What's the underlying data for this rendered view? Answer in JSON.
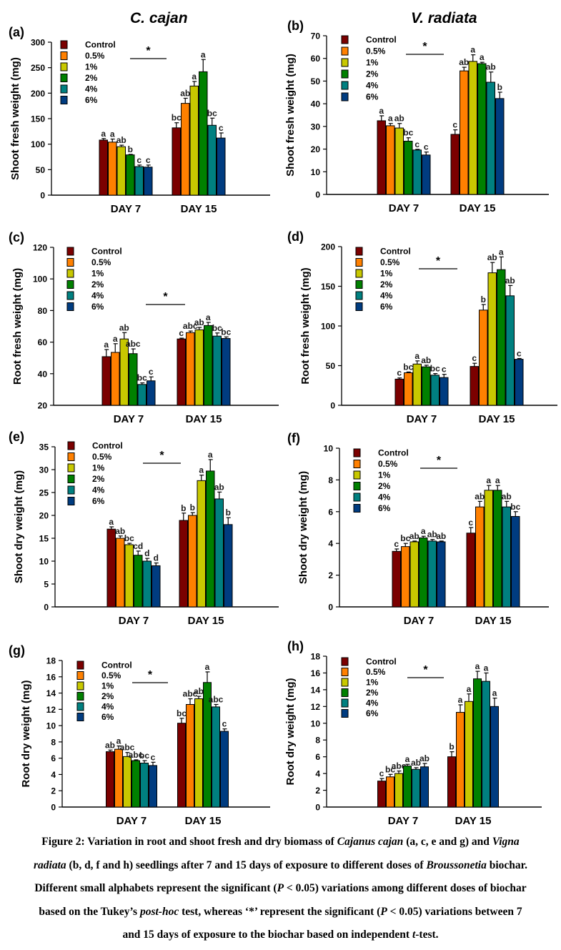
{
  "species_titles": {
    "left": "C. cajan",
    "right": "V. radiata"
  },
  "legend_labels": [
    "Control",
    "0.5%",
    "1%",
    "2%",
    "4%",
    "6%"
  ],
  "series_colors": [
    "#7b0000",
    "#ff8000",
    "#c8c800",
    "#008000",
    "#008080",
    "#003c80"
  ],
  "significance_mark": "*",
  "chart_data": [
    {
      "panel": "(a)",
      "type": "bar",
      "species": "C. cajan",
      "ylabel": "Shoot fresh weight (mg)",
      "ylim": [
        0,
        300
      ],
      "yticks": [
        0,
        50,
        100,
        150,
        200,
        250,
        300
      ],
      "categories": [
        "DAY 7",
        "DAY 15"
      ],
      "series": [
        {
          "name": "Control",
          "values": [
            108,
            132
          ],
          "errors": [
            3,
            10
          ],
          "letters": [
            "a",
            "bc"
          ]
        },
        {
          "name": "0.5%",
          "values": [
            104,
            180
          ],
          "errors": [
            6,
            10
          ],
          "letters": [
            "a",
            "ab"
          ]
        },
        {
          "name": "1%",
          "values": [
            95,
            214
          ],
          "errors": [
            3,
            9
          ],
          "letters": [
            "ab",
            "a"
          ]
        },
        {
          "name": "2%",
          "values": [
            79,
            242
          ],
          "errors": [
            1,
            24
          ],
          "letters": [
            "b",
            "a"
          ]
        },
        {
          "name": "4%",
          "values": [
            56,
            137
          ],
          "errors": [
            3,
            14
          ],
          "letters": [
            "c",
            "bc"
          ]
        },
        {
          "name": "6%",
          "values": [
            55,
            112
          ],
          "errors": [
            4,
            10
          ],
          "letters": [
            "c",
            "c"
          ]
        }
      ]
    },
    {
      "panel": "(b)",
      "type": "bar",
      "species": "V. radiata",
      "ylabel": "Shoot fresh weight (mg)",
      "ylim": [
        0,
        70
      ],
      "yticks": [
        0,
        10,
        20,
        30,
        40,
        50,
        60,
        70
      ],
      "categories": [
        "DAY 7",
        "DAY 15"
      ],
      "series": [
        {
          "name": "Control",
          "values": [
            32.5,
            26.5
          ],
          "errors": [
            2.2,
            2.0
          ],
          "letters": [
            "a",
            "c"
          ]
        },
        {
          "name": "0.5%",
          "values": [
            30.3,
            54.5
          ],
          "errors": [
            1.0,
            1.6
          ],
          "letters": [
            "a",
            "ab"
          ]
        },
        {
          "name": "1%",
          "values": [
            29.3,
            58.7
          ],
          "errors": [
            2.0,
            2.9
          ],
          "letters": [
            "ab",
            "a"
          ]
        },
        {
          "name": "2%",
          "values": [
            23.5,
            57.7
          ],
          "errors": [
            1.5,
            0.6
          ],
          "letters": [
            "bc",
            "a"
          ]
        },
        {
          "name": "4%",
          "values": [
            19.6,
            49.5
          ],
          "errors": [
            0.3,
            4.5
          ],
          "letters": [
            "c",
            "ab"
          ]
        },
        {
          "name": "6%",
          "values": [
            17.4,
            42.3
          ],
          "errors": [
            1.3,
            2.8
          ],
          "letters": [
            "c",
            "b"
          ]
        }
      ]
    },
    {
      "panel": "(c)",
      "type": "bar",
      "species": "C. cajan",
      "ylabel": "Root fresh weight (mg)",
      "ylim": [
        20,
        120
      ],
      "yticks": [
        20,
        40,
        60,
        80,
        100,
        120
      ],
      "categories": [
        "DAY 7",
        "DAY 15"
      ],
      "series": [
        {
          "name": "Control",
          "values": [
            50.8,
            62.0
          ],
          "errors": [
            4.5,
            0.5
          ],
          "letters": [
            "a",
            "c"
          ]
        },
        {
          "name": "0.5%",
          "values": [
            53.5,
            66.0
          ],
          "errors": [
            5.5,
            1.0
          ],
          "letters": [
            "a",
            "abc"
          ]
        },
        {
          "name": "1%",
          "values": [
            62.0,
            67.8
          ],
          "errors": [
            4.0,
            1.5
          ],
          "letters": [
            "ab",
            "ab"
          ]
        },
        {
          "name": "2%",
          "values": [
            52.7,
            70.5
          ],
          "errors": [
            3.0,
            2.0
          ],
          "letters": [
            "abc",
            "a"
          ]
        },
        {
          "name": "4%",
          "values": [
            33.2,
            63.8
          ],
          "errors": [
            1.0,
            2.0
          ],
          "letters": [
            "bc",
            "bc"
          ]
        },
        {
          "name": "6%",
          "values": [
            35.5,
            62.3
          ],
          "errors": [
            2.5,
            1.0
          ],
          "letters": [
            "c",
            "bc"
          ]
        }
      ]
    },
    {
      "panel": "(d)",
      "type": "bar",
      "species": "V. radiata",
      "ylabel": "Root fresh weight (mg)",
      "ylim": [
        0,
        200
      ],
      "yticks": [
        0,
        50,
        100,
        150,
        200
      ],
      "categories": [
        "DAY 7",
        "DAY 15"
      ],
      "series": [
        {
          "name": "Control",
          "values": [
            33,
            49
          ],
          "errors": [
            1.5,
            4
          ],
          "letters": [
            "c",
            "c"
          ]
        },
        {
          "name": "0.5%",
          "values": [
            41,
            120
          ],
          "errors": [
            1,
            7
          ],
          "letters": [
            "bc",
            "b"
          ]
        },
        {
          "name": "1%",
          "values": [
            52,
            167
          ],
          "errors": [
            4,
            13
          ],
          "letters": [
            "a",
            "ab"
          ]
        },
        {
          "name": "2%",
          "values": [
            48.5,
            171
          ],
          "errors": [
            2,
            16
          ],
          "letters": [
            "ab",
            "a"
          ]
        },
        {
          "name": "4%",
          "values": [
            38,
            138
          ],
          "errors": [
            2,
            13
          ],
          "letters": [
            "bc",
            "ab"
          ]
        },
        {
          "name": "6%",
          "values": [
            35,
            58
          ],
          "errors": [
            4,
            1
          ],
          "letters": [
            "c",
            "c"
          ]
        }
      ]
    },
    {
      "panel": "(e)",
      "type": "bar",
      "species": "C. cajan",
      "ylabel": "Shoot dry weight (mg)",
      "ylim": [
        0,
        35
      ],
      "yticks": [
        0,
        5,
        10,
        15,
        20,
        25,
        30,
        35
      ],
      "categories": [
        "DAY 7",
        "DAY 15"
      ],
      "series": [
        {
          "name": "Control",
          "values": [
            17.0,
            18.9
          ],
          "errors": [
            0.5,
            1.6
          ],
          "letters": [
            "a",
            "b"
          ]
        },
        {
          "name": "0.5%",
          "values": [
            15.0,
            20.0
          ],
          "errors": [
            0.5,
            0.6
          ],
          "letters": [
            "ab",
            "b"
          ]
        },
        {
          "name": "1%",
          "values": [
            13.6,
            27.6
          ],
          "errors": [
            0.3,
            1.2
          ],
          "letters": [
            "bc",
            "a"
          ]
        },
        {
          "name": "2%",
          "values": [
            11.3,
            29.7
          ],
          "errors": [
            0.9,
            2.5
          ],
          "letters": [
            "cd",
            "a"
          ]
        },
        {
          "name": "4%",
          "values": [
            10.0,
            23.6
          ],
          "errors": [
            0.6,
            1.5
          ],
          "letters": [
            "d",
            "ab"
          ]
        },
        {
          "name": "6%",
          "values": [
            9.0,
            18.0
          ],
          "errors": [
            0.6,
            1.5
          ],
          "letters": [
            "d",
            "b"
          ]
        }
      ]
    },
    {
      "panel": "(f)",
      "type": "bar",
      "species": "V. radiata",
      "ylabel": "Shoot dry weight (mg)",
      "ylim": [
        0,
        10
      ],
      "yticks": [
        0,
        2,
        4,
        6,
        8,
        10
      ],
      "categories": [
        "DAY 7",
        "DAY 15"
      ],
      "series": [
        {
          "name": "Control",
          "values": [
            3.5,
            4.65
          ],
          "errors": [
            0.15,
            0.35
          ],
          "letters": [
            "c",
            "c"
          ]
        },
        {
          "name": "0.5%",
          "values": [
            3.8,
            6.3
          ],
          "errors": [
            0.2,
            0.35
          ],
          "letters": [
            "bc",
            "ab"
          ]
        },
        {
          "name": "1%",
          "values": [
            4.1,
            7.35
          ],
          "errors": [
            0.05,
            0.3
          ],
          "letters": [
            "ab",
            "a"
          ]
        },
        {
          "name": "2%",
          "values": [
            4.35,
            7.35
          ],
          "errors": [
            0.1,
            0.3
          ],
          "letters": [
            "a",
            "a"
          ]
        },
        {
          "name": "4%",
          "values": [
            4.15,
            6.3
          ],
          "errors": [
            0.1,
            0.35
          ],
          "letters": [
            "ab",
            "ab"
          ]
        },
        {
          "name": "6%",
          "values": [
            4.1,
            5.7
          ],
          "errors": [
            0.05,
            0.3
          ],
          "letters": [
            "ab",
            "bc"
          ]
        }
      ]
    },
    {
      "panel": "(g)",
      "type": "bar",
      "species": "C. cajan",
      "ylabel": "Root dry weight (mg)",
      "ylim": [
        0,
        18
      ],
      "yticks": [
        0,
        2,
        4,
        6,
        8,
        10,
        12,
        14,
        16,
        18
      ],
      "categories": [
        "DAY 7",
        "DAY 15"
      ],
      "series": [
        {
          "name": "Control",
          "values": [
            6.8,
            10.3
          ],
          "errors": [
            0.2,
            0.6
          ],
          "letters": [
            "ab",
            "bc"
          ]
        },
        {
          "name": "0.5%",
          "values": [
            7.1,
            12.6
          ],
          "errors": [
            0.4,
            0.7
          ],
          "letters": [
            "a",
            "abc"
          ]
        },
        {
          "name": "1%",
          "values": [
            6.2,
            13.3
          ],
          "errors": [
            0.5,
            0.3
          ],
          "letters": [
            "abc",
            "ab"
          ]
        },
        {
          "name": "2%",
          "values": [
            5.7,
            15.3
          ],
          "errors": [
            0.1,
            1.3
          ],
          "letters": [
            "abc",
            "a"
          ]
        },
        {
          "name": "4%",
          "values": [
            5.4,
            12.3
          ],
          "errors": [
            0.3,
            0.3
          ],
          "letters": [
            "bc",
            "abc"
          ]
        },
        {
          "name": "6%",
          "values": [
            5.1,
            9.3
          ],
          "errors": [
            0.4,
            0.3
          ],
          "letters": [
            "c",
            "c"
          ]
        }
      ]
    },
    {
      "panel": "(h)",
      "type": "bar",
      "species": "V. radiata",
      "ylabel": "Root dry weight (mg)",
      "ylim": [
        0,
        18
      ],
      "yticks": [
        0,
        2,
        4,
        6,
        8,
        10,
        12,
        14,
        16,
        18
      ],
      "categories": [
        "DAY 7",
        "DAY 15"
      ],
      "series": [
        {
          "name": "Control",
          "values": [
            3.1,
            6.0
          ],
          "errors": [
            0.3,
            0.6
          ],
          "letters": [
            "c",
            "b"
          ]
        },
        {
          "name": "0.5%",
          "values": [
            3.6,
            11.3
          ],
          "errors": [
            0.3,
            0.9
          ],
          "letters": [
            "bc",
            "a"
          ]
        },
        {
          "name": "1%",
          "values": [
            4.0,
            12.6
          ],
          "errors": [
            0.3,
            0.9
          ],
          "letters": [
            "abc",
            "a"
          ]
        },
        {
          "name": "2%",
          "values": [
            4.9,
            15.3
          ],
          "errors": [
            0.2,
            0.9
          ],
          "letters": [
            "a",
            "a"
          ]
        },
        {
          "name": "4%",
          "values": [
            4.5,
            15.0
          ],
          "errors": [
            0.2,
            1.0
          ],
          "letters": [
            "ab",
            "a"
          ]
        },
        {
          "name": "6%",
          "values": [
            4.8,
            12.0
          ],
          "errors": [
            0.4,
            1.0
          ],
          "letters": [
            "ab",
            "a"
          ]
        }
      ]
    }
  ],
  "caption": {
    "lines": [
      [
        {
          "t": "Figure 2: Variation in root and shoot fresh and dry biomass of "
        },
        {
          "t": "Cajanus cajan",
          "i": true
        },
        {
          "t": " (a, c, e and g) and "
        },
        {
          "t": "Vigna",
          "i": true
        }
      ],
      [
        {
          "t": "radiata",
          "i": true
        },
        {
          "t": " (b, d, f and h) seedlings after 7 and 15 days of exposure to different doses of "
        },
        {
          "t": "Broussonetia",
          "i": true
        },
        {
          "t": " biochar."
        }
      ],
      [
        {
          "t": "Different small alphabets represent the significant ("
        },
        {
          "t": "P",
          "i": true
        },
        {
          "t": " < 0.05) variations among different doses of biochar"
        }
      ],
      [
        {
          "t": "based on the Tukey’s "
        },
        {
          "t": "post-hoc",
          "i": true
        },
        {
          "t": " test, whereas ‘*’ represent the significant ("
        },
        {
          "t": "P",
          "i": true
        },
        {
          "t": " < 0.05) variations between 7"
        }
      ],
      [
        {
          "t": "and 15 days of exposure to the biochar based on independent "
        },
        {
          "t": "t",
          "i": true
        },
        {
          "t": "-test."
        }
      ]
    ]
  }
}
